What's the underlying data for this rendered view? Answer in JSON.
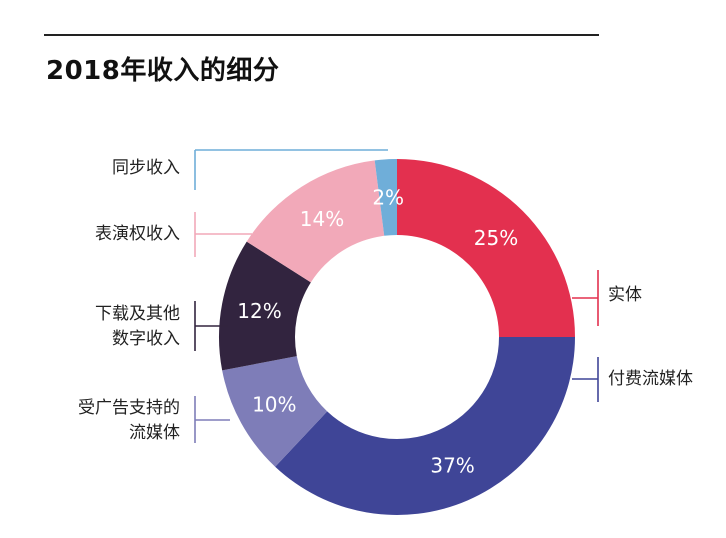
{
  "title": "2018年收入的细分",
  "chart_data": {
    "type": "pie",
    "donut": true,
    "title": "2018年收入的细分",
    "slices": [
      {
        "label": "实体",
        "label_lines": [
          "实体"
        ],
        "value": 25,
        "value_label": "25%",
        "color": "#e3304f",
        "line_color": "#e3304f"
      },
      {
        "label": "付费流媒体",
        "label_lines": [
          "付费流媒体"
        ],
        "value": 37,
        "value_label": "37%",
        "color": "#3f4597",
        "line_color": "#3f4597"
      },
      {
        "label": "受广告支持的流媒体",
        "label_lines": [
          "受广告支持的",
          "流媒体"
        ],
        "value": 10,
        "value_label": "10%",
        "color": "#7e7db8",
        "line_color": "#7e7db8"
      },
      {
        "label": "下载及其他数字收入",
        "label_lines": [
          "下载及其他",
          "数字收入"
        ],
        "value": 12,
        "value_label": "12%",
        "color": "#32243f",
        "line_color": "#32243f"
      },
      {
        "label": "表演权收入",
        "label_lines": [
          "表演权收入"
        ],
        "value": 14,
        "value_label": "14%",
        "color": "#f2a9b9",
        "line_color": "#f2a9b9"
      },
      {
        "label": "同步收入",
        "label_lines": [
          "同步收入"
        ],
        "value": 2,
        "value_label": "2%",
        "color": "#6faed9",
        "line_color": "#6faed9"
      }
    ]
  }
}
